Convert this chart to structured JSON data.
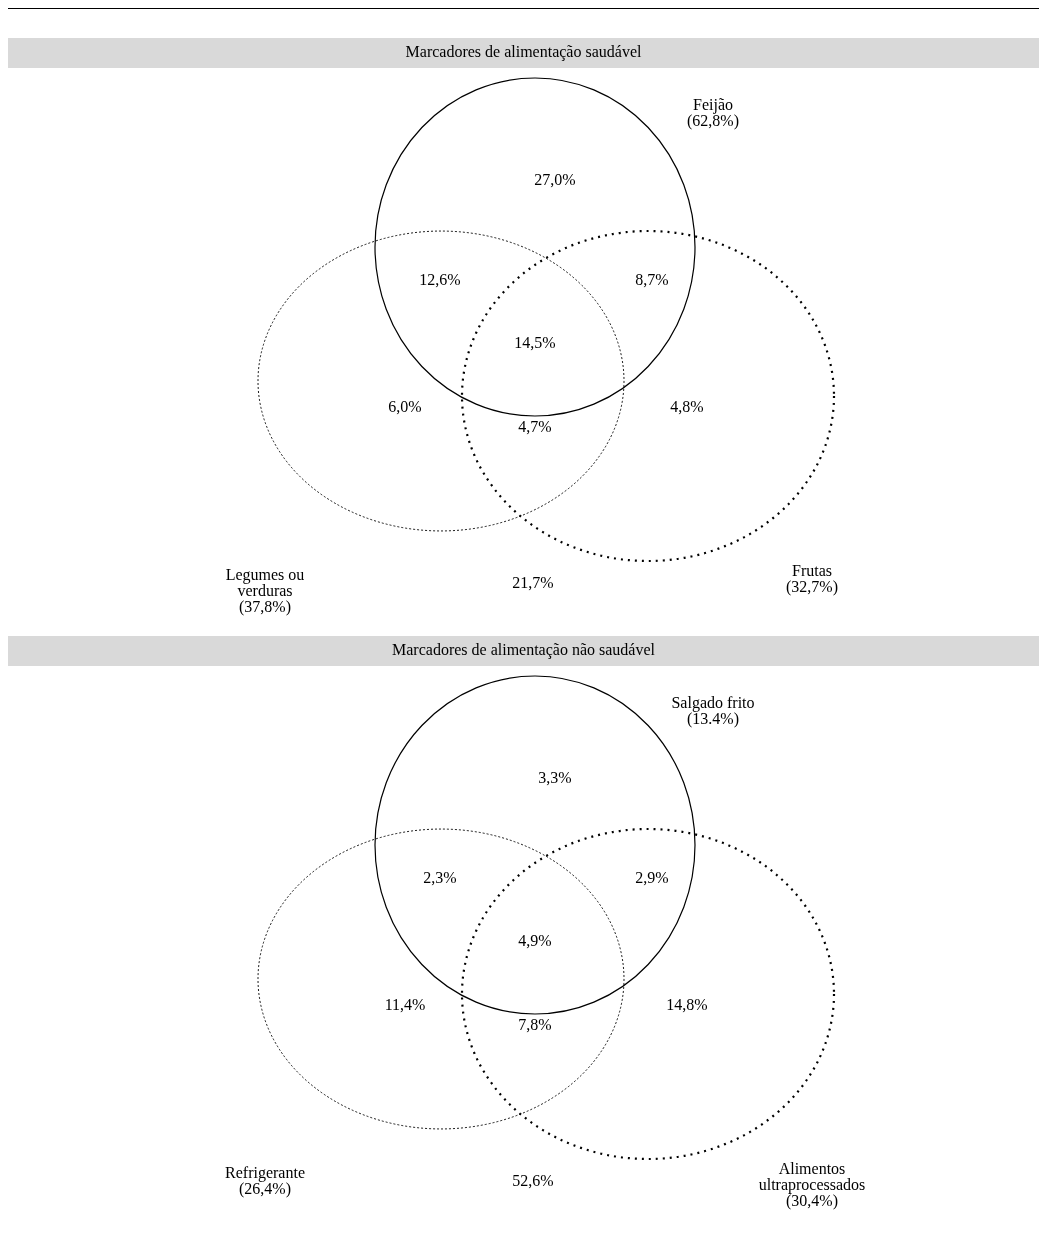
{
  "chart_data": [
    {
      "type": "other",
      "title": "Marcadores de alimentação saudável",
      "categories": [
        "Feijão",
        "Legumes ou verduras",
        "Frutas"
      ],
      "values": [
        62.8,
        37.8,
        32.7
      ],
      "value_labels": [
        "(62,8%)",
        "(37,8%)",
        "(32,7%)"
      ],
      "annotations": [
        "27,0%",
        "12,6%",
        "8,7%",
        "14,5%",
        "6,0%",
        "4,7%",
        "4,8%",
        "21,7%"
      ]
    },
    {
      "type": "other",
      "title": "Marcadores de alimentação não saudável",
      "categories": [
        "Salgado frito",
        "Refrigerante",
        "Alimentos ultraprocessados"
      ],
      "values": [
        13.4,
        26.4,
        30.4
      ],
      "value_labels": [
        "(13.4%)",
        "(26,4%)",
        "(30,4%)"
      ],
      "annotations": [
        "3,3%",
        "2,3%",
        "2,9%",
        "4,9%",
        "11,4%",
        "7,8%",
        "14,8%",
        "52,6%"
      ]
    }
  ]
}
